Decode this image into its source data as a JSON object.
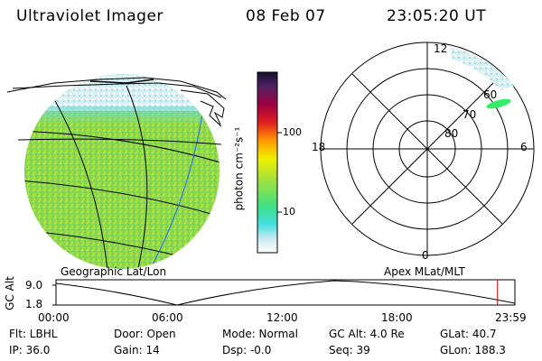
{
  "header": {
    "title": "Ultraviolet Imager",
    "date": "08 Feb 07",
    "time": "23:05:20 UT"
  },
  "colorbar": {
    "label": "photon cm⁻²s⁻¹",
    "ticks": [
      "100",
      "10"
    ]
  },
  "polar": {
    "hour_top": "12",
    "hour_left": "18",
    "hour_right": "6",
    "hour_bottom": "0",
    "lat_labels": [
      "60",
      "70",
      "80"
    ]
  },
  "panel_labels": {
    "left": "Geographic Lat/Lon",
    "right": "Apex MLat/MLT"
  },
  "altitude_plot": {
    "ylabel": "GC Alt",
    "ytick_top": "9.0",
    "ytick_bottom": "1.8",
    "xticks": [
      "00:00",
      "06:00",
      "12:00",
      "18:00",
      "23:59"
    ],
    "marker_time_hours": 23.09
  },
  "info": {
    "flt": "Flt: LBHL",
    "ip": "IP: 36.0",
    "door": "Door: Open",
    "gain": "Gain: 14",
    "mode": "Mode: Normal",
    "dsp": "Dsp:   -0.0",
    "gcalt": "GC Alt: 4.0 Re",
    "seq": "Seq: 39",
    "glat": "GLat:   40.7",
    "glon": "GLon: 188.3"
  },
  "colors": {
    "earth_green": "#8fdc3c",
    "aurora": "#33ee66",
    "marker": "#cc0000"
  }
}
